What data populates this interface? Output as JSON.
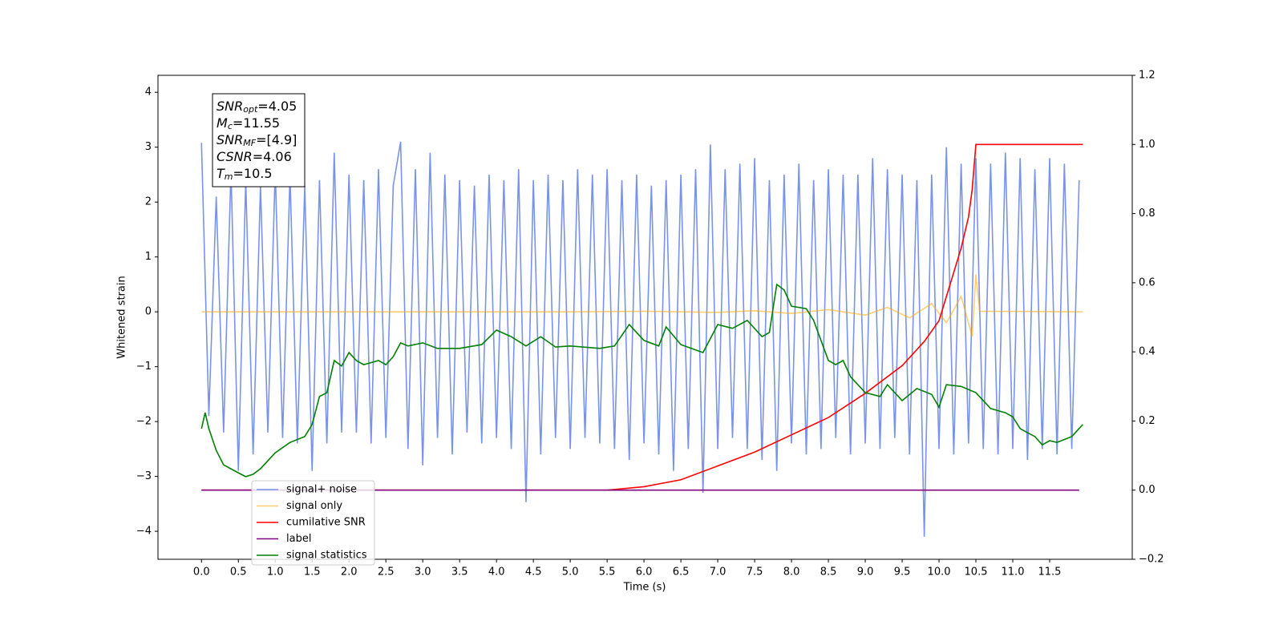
{
  "chart_data": {
    "type": "line",
    "xlabel": "Time (s)",
    "ylabel": "Whitened strain",
    "xlim": [
      -0.59,
      12.62
    ],
    "ylim": [
      -4.51,
      4.31
    ],
    "y2lim": [
      -0.2,
      1.2
    ],
    "xticks": [
      {
        "value": 0,
        "label": "0.0"
      },
      0.5,
      {
        "value": 1,
        "label": "1.0"
      },
      1.5,
      {
        "value": 2,
        "label": "2.0"
      },
      2.5,
      {
        "value": 3,
        "label": "3.0"
      },
      3.5,
      {
        "value": 4,
        "label": "4.0"
      },
      4.5,
      {
        "value": 5,
        "label": "5.0"
      },
      5.5,
      {
        "value": 6,
        "label": "6.0"
      },
      6.5,
      {
        "value": 7,
        "label": "7.0"
      },
      7.5,
      {
        "value": 8,
        "label": "8.0"
      },
      8.5,
      {
        "value": 9,
        "label": "9.0"
      },
      9.5,
      {
        "value": 10,
        "label": "10.0"
      },
      10.5,
      {
        "value": 11,
        "label": "11.0"
      },
      11.5
    ],
    "yticks": [
      {
        "value": -4,
        "label": "−4"
      },
      {
        "value": -3,
        "label": "−3"
      },
      {
        "value": -2,
        "label": "−2"
      },
      {
        "value": -1,
        "label": "−1"
      },
      0,
      1,
      2,
      3,
      4
    ],
    "y2ticks": [
      {
        "value": -0.2,
        "label": "−0.2"
      },
      {
        "value": 0,
        "label": "0.0"
      },
      0.2,
      0.4,
      0.6,
      0.8,
      {
        "value": 1,
        "label": "1.0"
      },
      1.2
    ],
    "annotation": [
      [
        "SNR",
        "opt",
        "=4.05"
      ],
      [
        "M",
        "c",
        "=11.55"
      ],
      [
        "SNR",
        "MF",
        "=[4.9]"
      ],
      [
        "CSNR",
        "",
        "=4.06"
      ],
      [
        "T",
        "m",
        "=10.5"
      ]
    ],
    "series": [
      {
        "name": "signal+ noise",
        "color": "#7893e8",
        "x": [
          0,
          0.1,
          0.2,
          0.3,
          0.4,
          0.5,
          0.6,
          0.7,
          0.8,
          0.9,
          1.0,
          1.1,
          1.2,
          1.3,
          1.4,
          1.5,
          1.6,
          1.7,
          1.8,
          1.9,
          2.0,
          2.1,
          2.2,
          2.3,
          2.4,
          2.5,
          2.6,
          2.7,
          2.8,
          2.9,
          3.0,
          3.1,
          3.2,
          3.3,
          3.4,
          3.5,
          3.6,
          3.7,
          3.8,
          3.9,
          4.0,
          4.1,
          4.2,
          4.3,
          4.4,
          4.5,
          4.6,
          4.7,
          4.8,
          4.9,
          5.0,
          5.1,
          5.2,
          5.3,
          5.4,
          5.5,
          5.6,
          5.7,
          5.8,
          5.9,
          6.0,
          6.1,
          6.2,
          6.3,
          6.4,
          6.5,
          6.6,
          6.7,
          6.8,
          6.9,
          7.0,
          7.1,
          7.2,
          7.3,
          7.4,
          7.5,
          7.6,
          7.7,
          7.8,
          7.9,
          8.0,
          8.1,
          8.2,
          8.3,
          8.4,
          8.5,
          8.6,
          8.7,
          8.8,
          8.9,
          9.0,
          9.1,
          9.2,
          9.3,
          9.4,
          9.5,
          9.6,
          9.7,
          9.8,
          9.9,
          10.0,
          10.1,
          10.2,
          10.3,
          10.4,
          10.5,
          10.6,
          10.7,
          10.8,
          10.9,
          11.0,
          11.1,
          11.2,
          11.3,
          11.4,
          11.5,
          11.6,
          11.7,
          11.8,
          11.9
        ],
        "values": [
          3.08,
          -1.9,
          2.1,
          -2.2,
          2.6,
          -2.9,
          2.4,
          -2.6,
          2.3,
          -2.2,
          2.6,
          -2.3,
          2.5,
          -2.4,
          2.3,
          -2.9,
          2.4,
          -2.4,
          2.9,
          -2.2,
          2.5,
          -2.2,
          2.4,
          -2.4,
          2.6,
          -2.3,
          2.3,
          3.1,
          -2.5,
          2.6,
          -2.8,
          2.9,
          -2.3,
          2.5,
          -2.6,
          2.4,
          -2.2,
          2.3,
          -2.4,
          2.5,
          -2.3,
          2.4,
          -2.5,
          2.6,
          -3.47,
          2.4,
          -2.6,
          2.5,
          -2.3,
          2.4,
          -2.5,
          2.6,
          -2.3,
          2.5,
          -2.4,
          2.6,
          -2.5,
          2.4,
          -2.7,
          2.5,
          -2.4,
          2.3,
          -2.6,
          2.4,
          -2.9,
          2.5,
          -2.5,
          2.6,
          -3.3,
          3.05,
          -2.5,
          2.6,
          -2.3,
          2.7,
          -2.5,
          2.8,
          -2.7,
          2.4,
          -2.9,
          2.5,
          -2.4,
          2.7,
          -2.6,
          2.4,
          -2.5,
          2.6,
          -2.3,
          2.5,
          -2.6,
          2.5,
          -2.4,
          2.8,
          -2.5,
          2.6,
          -2.3,
          2.5,
          -2.6,
          2.4,
          -4.1,
          2.5,
          -2.5,
          3.0,
          -2.6,
          2.7,
          -2.4,
          2.8,
          -2.5,
          2.7,
          -2.6,
          2.9,
          -2.5,
          2.8,
          -2.7,
          2.6,
          -2.5,
          2.8,
          -2.6,
          2.7,
          -2.5,
          2.4
        ]
      },
      {
        "name": "signal only",
        "color": "#ffa500",
        "x": [
          0,
          5,
          6,
          7,
          7.5,
          8,
          8.5,
          9,
          9.3,
          9.6,
          9.9,
          10.1,
          10.3,
          10.45,
          10.5,
          10.55,
          11.95
        ],
        "values": [
          0,
          0,
          0.01,
          -0.01,
          0.02,
          -0.03,
          0.04,
          -0.06,
          0.08,
          -0.11,
          0.15,
          -0.2,
          0.28,
          -0.45,
          0.68,
          0.01,
          0
        ]
      },
      {
        "name": "cumilative SNR",
        "color": "#ff0000",
        "axis": "y2",
        "x": [
          0,
          5.5,
          6,
          6.5,
          7,
          7.5,
          8,
          8.5,
          9,
          9.5,
          9.8,
          10,
          10.2,
          10.3,
          10.4,
          10.45,
          10.5,
          11.95
        ],
        "values": [
          0,
          0,
          0.01,
          0.03,
          0.07,
          0.11,
          0.16,
          0.21,
          0.28,
          0.36,
          0.43,
          0.49,
          0.63,
          0.7,
          0.79,
          0.87,
          1.0,
          1.0
        ]
      },
      {
        "name": "label",
        "color": "#800080",
        "axis": "y2",
        "x": [
          0,
          11.9
        ],
        "values": [
          0,
          0
        ]
      },
      {
        "name": "signal statistics",
        "color": "#008000",
        "axis": "y2",
        "x": [
          0,
          0.05,
          0.1,
          0.2,
          0.3,
          0.5,
          0.6,
          0.7,
          0.8,
          1.0,
          1.2,
          1.4,
          1.5,
          1.6,
          1.7,
          1.8,
          1.9,
          2.0,
          2.1,
          2.2,
          2.4,
          2.5,
          2.6,
          2.7,
          2.8,
          3.0,
          3.2,
          3.5,
          3.8,
          4.0,
          4.2,
          4.4,
          4.6,
          4.8,
          5.0,
          5.4,
          5.6,
          5.8,
          6.0,
          6.2,
          6.3,
          6.5,
          6.8,
          7.0,
          7.2,
          7.4,
          7.6,
          7.7,
          7.8,
          7.9,
          8.0,
          8.2,
          8.3,
          8.5,
          8.6,
          8.7,
          8.8,
          9.0,
          9.2,
          9.3,
          9.5,
          9.7,
          9.9,
          10.0,
          10.1,
          10.3,
          10.5,
          10.7,
          10.9,
          11.0,
          11.1,
          11.2,
          11.3,
          11.4,
          11.5,
          11.6,
          11.8,
          11.95
        ],
        "values": [
          0.178,
          0.224,
          0.178,
          0.115,
          0.073,
          0.05,
          0.039,
          0.046,
          0.062,
          0.108,
          0.138,
          0.155,
          0.19,
          0.271,
          0.282,
          0.375,
          0.359,
          0.398,
          0.375,
          0.363,
          0.375,
          0.363,
          0.386,
          0.426,
          0.417,
          0.426,
          0.41,
          0.41,
          0.421,
          0.463,
          0.444,
          0.417,
          0.444,
          0.414,
          0.417,
          0.41,
          0.417,
          0.479,
          0.433,
          0.417,
          0.472,
          0.421,
          0.398,
          0.479,
          0.468,
          0.491,
          0.444,
          0.456,
          0.595,
          0.579,
          0.532,
          0.525,
          0.491,
          0.375,
          0.363,
          0.375,
          0.328,
          0.282,
          0.271,
          0.305,
          0.259,
          0.294,
          0.277,
          0.24,
          0.305,
          0.3,
          0.282,
          0.236,
          0.224,
          0.212,
          0.178,
          0.166,
          0.155,
          0.131,
          0.143,
          0.138,
          0.155,
          0.19
        ]
      }
    ]
  }
}
